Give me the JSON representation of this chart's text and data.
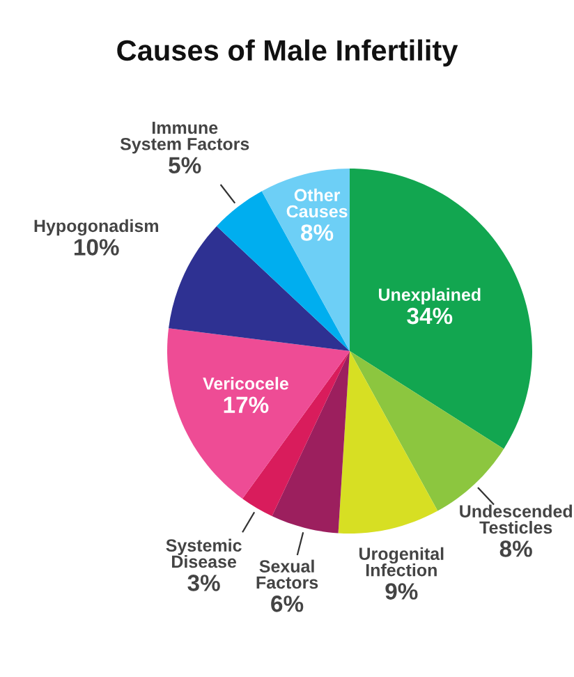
{
  "chart_data": {
    "type": "pie",
    "title": "Causes of Male Infertility",
    "categories": [
      "Unexplained",
      "Undescended\nTesticles",
      "Urogenital\nInfection",
      "Sexual\nFactors",
      "Systemic\nDisease",
      "Vericocele",
      "Hypogonadism",
      "Immune\nSystem Factors",
      "Other\nCauses"
    ],
    "values": [
      34,
      8,
      9,
      6,
      3,
      17,
      10,
      5,
      8
    ],
    "colors": [
      "#12a650",
      "#8cc63f",
      "#d7df23",
      "#9c1f5e",
      "#d91c5c",
      "#ee4c95",
      "#2e3192",
      "#00aeef",
      "#6dcff6"
    ],
    "value_labels": [
      "34%",
      "8%",
      "9%",
      "6%",
      "3%",
      "17%",
      "10%",
      "5%",
      "8%"
    ]
  }
}
